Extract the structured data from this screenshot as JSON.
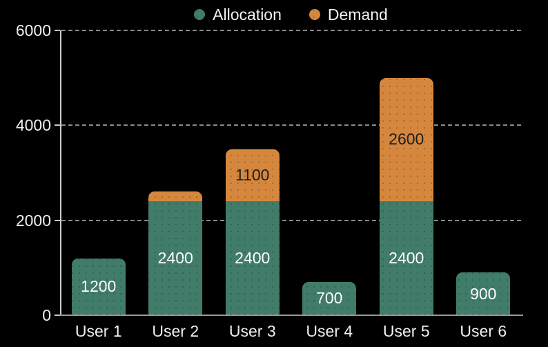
{
  "chart_data": {
    "type": "bar",
    "stacked": true,
    "title": "",
    "xlabel": "",
    "ylabel": "",
    "categories": [
      "User 1",
      "User 2",
      "User 3",
      "User 4",
      "User 5",
      "User 6"
    ],
    "series": [
      {
        "name": "Allocation",
        "color": "#417C6B",
        "label_color": "#FFFFFF",
        "values": [
          1200,
          2400,
          2400,
          700,
          2400,
          900
        ]
      },
      {
        "name": "Demand",
        "color": "#D6873E",
        "label_color": "#1F1F1F",
        "values": [
          0,
          200,
          1100,
          0,
          2600,
          0
        ]
      }
    ],
    "ylim": [
      0,
      6000
    ],
    "y_ticks": [
      0,
      2000,
      4000,
      6000
    ],
    "grid": "horizontal-dashed",
    "legend_position": "top-center",
    "colors": {
      "background": "#000000",
      "axis_line": "#CFCFCF",
      "baseline": "#9A9A9A",
      "gridline": "#8A8A8A",
      "tick_label": "#F2F2F2",
      "legend_text": "#F5F5F5"
    }
  }
}
